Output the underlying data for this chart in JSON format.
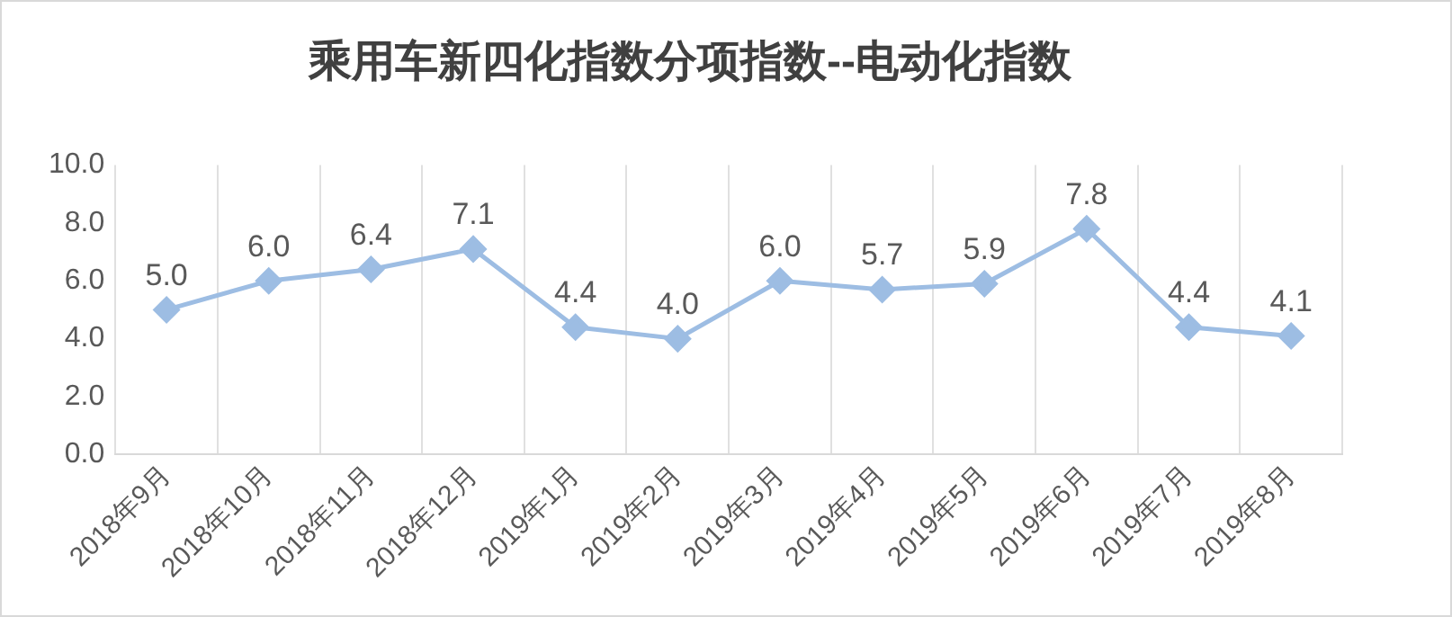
{
  "chart_data": {
    "type": "line",
    "title": "乘用车新四化指数分项指数--电动化指数",
    "categories": [
      "2018年9月",
      "2018年10月",
      "2018年11月",
      "2018年12月",
      "2019年1月",
      "2019年2月",
      "2019年3月",
      "2019年4月",
      "2019年5月",
      "2019年6月",
      "2019年7月",
      "2019年8月"
    ],
    "series": [
      {
        "color": "#9dbde3",
        "values": [
          5.0,
          6.0,
          6.4,
          7.1,
          4.4,
          4.0,
          6.0,
          5.7,
          5.9,
          7.8,
          4.4,
          4.1
        ],
        "value_labels": [
          "5.0",
          "6.0",
          "6.4",
          "7.1",
          "4.4",
          "4.0",
          "6.0",
          "5.7",
          "5.9",
          "7.8",
          "4.4",
          "4.1"
        ]
      }
    ],
    "ylim": [
      0,
      10
    ],
    "yticks": [
      {
        "value": 0,
        "label": "0.0"
      },
      {
        "value": 2,
        "label": "2.0"
      },
      {
        "value": 4,
        "label": "4.0"
      },
      {
        "value": 6,
        "label": "6.0"
      },
      {
        "value": 8,
        "label": "8.0"
      },
      {
        "value": 10,
        "label": "10.0"
      }
    ],
    "grid": "x",
    "legend": false,
    "marker": "diamond",
    "line_style": "solid"
  }
}
